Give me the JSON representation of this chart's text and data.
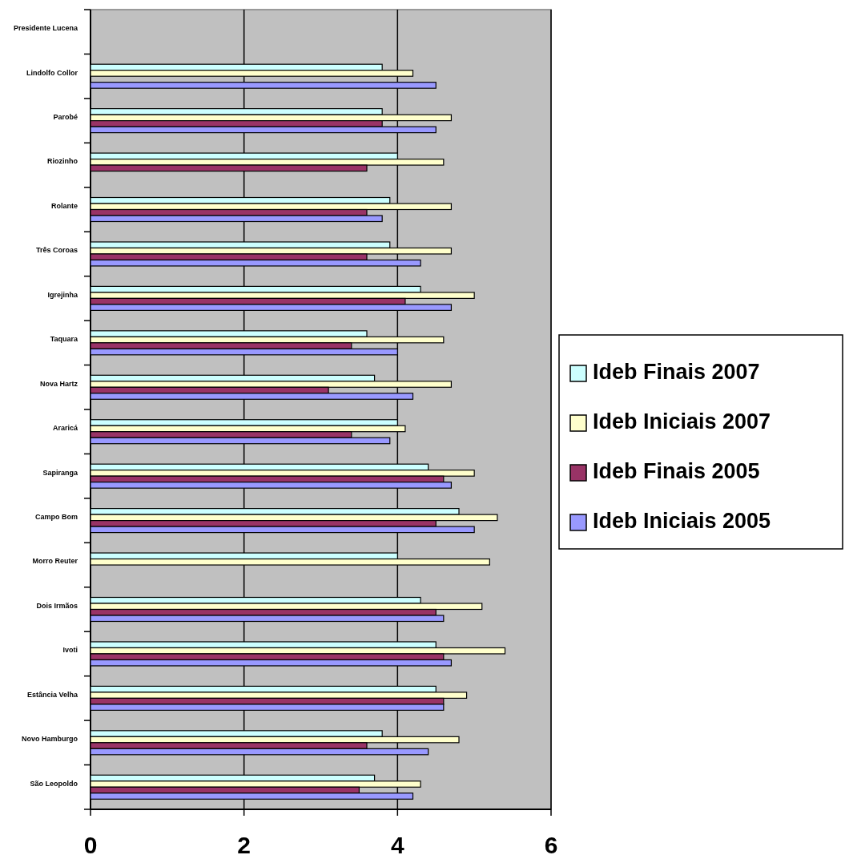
{
  "chart_data": {
    "type": "bar",
    "orientation": "horizontal",
    "categories": [
      "Presidente Lucena",
      "Lindolfo Collor",
      "Parobé",
      "Riozinho",
      "Rolante",
      "Três Coroas",
      "Igrejinha",
      "Taquara",
      "Nova Hartz",
      "Araricá",
      "Sapiranga",
      "Campo Bom",
      "Morro Reuter",
      "Dois Irmãos",
      "Ivoti",
      "Estância Velha",
      "Novo Hamburgo",
      "São Leopoldo"
    ],
    "series": [
      {
        "name": "Ideb Finais 2007",
        "color": "#ccffff",
        "values": [
          null,
          3.8,
          3.8,
          4.0,
          3.9,
          3.9,
          4.3,
          3.6,
          3.7,
          4.0,
          4.4,
          4.8,
          4.0,
          4.3,
          4.5,
          4.5,
          3.8,
          3.7
        ]
      },
      {
        "name": "Ideb Iniciais 2007",
        "color": "#ffffcc",
        "values": [
          null,
          4.2,
          4.7,
          4.6,
          4.7,
          4.7,
          5.0,
          4.6,
          4.7,
          4.1,
          5.0,
          5.3,
          5.2,
          5.1,
          5.4,
          4.9,
          4.8,
          4.3
        ]
      },
      {
        "name": "Ideb Finais 2005",
        "color": "#993366",
        "values": [
          null,
          null,
          3.8,
          3.6,
          3.6,
          3.6,
          4.1,
          3.4,
          3.1,
          3.4,
          4.6,
          4.5,
          null,
          4.5,
          4.6,
          4.6,
          3.6,
          3.5
        ]
      },
      {
        "name": "Ideb Iniciais 2005",
        "color": "#9999ff",
        "values": [
          null,
          4.5,
          4.5,
          null,
          3.8,
          4.3,
          4.7,
          4.0,
          4.2,
          3.9,
          4.7,
          5.0,
          null,
          4.6,
          4.7,
          4.6,
          4.4,
          4.2
        ]
      }
    ],
    "xlim": [
      0,
      6
    ],
    "xticks": [
      0,
      2,
      4,
      6
    ],
    "grid": "x",
    "legend": "right"
  }
}
